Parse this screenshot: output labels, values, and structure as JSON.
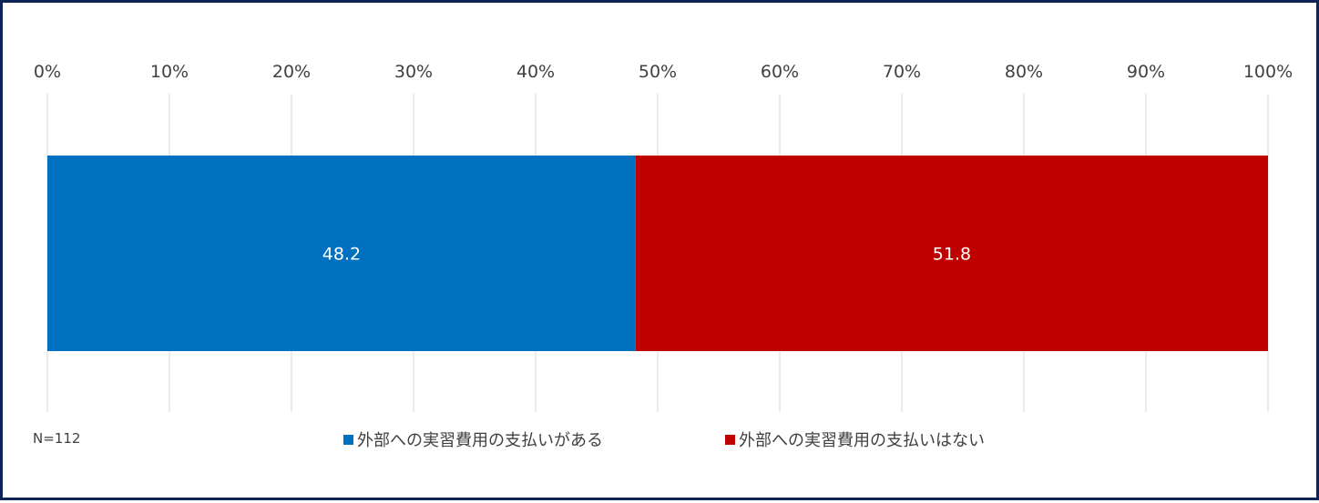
{
  "chart_data": {
    "type": "bar",
    "orientation": "horizontal",
    "stacked": true,
    "xlim": [
      0,
      100
    ],
    "x_ticks": [
      "0%",
      "10%",
      "20%",
      "30%",
      "40%",
      "50%",
      "60%",
      "70%",
      "80%",
      "90%",
      "100%"
    ],
    "grid": true,
    "legend_position": "bottom",
    "series": [
      {
        "name": "外部への実習費用の支払いがある",
        "values": [
          48.2
        ],
        "label": "48.2",
        "color": "#0070c0"
      },
      {
        "name": "外部への実習費用の支払いはない",
        "values": [
          51.8
        ],
        "label": "51.8",
        "color": "#c00000"
      }
    ]
  },
  "note": "N=112"
}
